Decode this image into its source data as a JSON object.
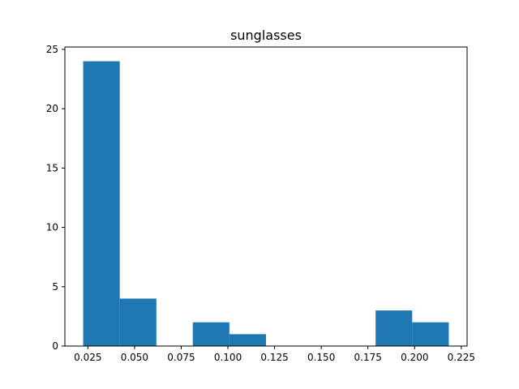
{
  "chart_data": {
    "type": "bar",
    "title": "sunglasses",
    "xlabel": "",
    "ylabel": "",
    "bin_edges": [
      0.0225,
      0.0421,
      0.0617,
      0.0812,
      0.1008,
      0.1204,
      0.14,
      0.1596,
      0.1791,
      0.1987,
      0.2183
    ],
    "values": [
      24,
      4,
      0,
      2,
      1,
      0,
      0,
      0,
      3,
      2
    ],
    "xlim": [
      0.0127,
      0.2281
    ],
    "ylim": [
      0,
      25.2
    ],
    "x_ticks": [
      0.025,
      0.05,
      0.075,
      0.1,
      0.125,
      0.15,
      0.175,
      0.2,
      0.225
    ],
    "x_tick_labels": [
      "0.025",
      "0.050",
      "0.075",
      "0.100",
      "0.125",
      "0.150",
      "0.175",
      "0.200",
      "0.225"
    ],
    "y_ticks": [
      0,
      5,
      10,
      15,
      20,
      25
    ],
    "y_tick_labels": [
      "0",
      "5",
      "10",
      "15",
      "20",
      "25"
    ],
    "bar_color": "#1f77b4",
    "grid": false,
    "legend": "none"
  }
}
